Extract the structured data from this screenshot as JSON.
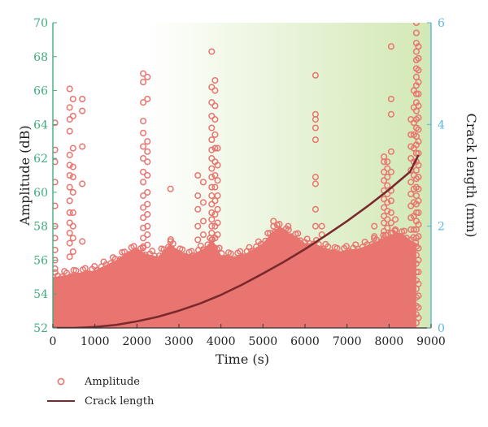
{
  "chart_data": {
    "type": "scatter",
    "xlabel": "Time (s)",
    "ylabel": "Amplitude (dB)",
    "y2label": "Crack length (mm)",
    "xlim": [
      0,
      9000
    ],
    "ylim": [
      52,
      70
    ],
    "y2lim": [
      0,
      6
    ],
    "xticks": [
      0,
      1000,
      2000,
      3000,
      4000,
      5000,
      6000,
      7000,
      8000,
      9000
    ],
    "yticks": [
      52,
      54,
      56,
      58,
      60,
      62,
      64,
      66,
      68,
      70
    ],
    "y2ticks": [
      0,
      2,
      4,
      6
    ],
    "grid": false,
    "legend_position": "bottom-left",
    "background": "gradient white to light green",
    "colors": {
      "amplitude": "#e8756f",
      "crack": "#7a2a2e",
      "left_axis": "#3fae7c",
      "right_axis": "#5ab5e0",
      "bg_start": "#ffffff",
      "bg_end": "#d2e8b4"
    },
    "series": [
      {
        "name": "Amplitude",
        "kind": "scatter",
        "axis": "left",
        "band_upper_envelope": {
          "x": [
            0,
            500,
            1000,
            1500,
            1800,
            2000,
            2200,
            2500,
            2800,
            3000,
            3300,
            3600,
            3800,
            4000,
            4300,
            4600,
            5000,
            5200,
            5400,
            5600,
            5800,
            6000,
            6200,
            6500,
            6800,
            7000,
            7300,
            7600,
            7900,
            8100,
            8300,
            8500,
            8650
          ],
          "y": [
            55.0,
            55.2,
            55.4,
            56.0,
            56.5,
            56.7,
            56.4,
            56.2,
            57.0,
            56.5,
            56.3,
            56.7,
            57.2,
            56.3,
            56.2,
            56.4,
            57.0,
            57.6,
            58.0,
            57.6,
            57.4,
            57.0,
            57.0,
            56.7,
            56.5,
            56.6,
            56.7,
            57.0,
            57.3,
            57.5,
            57.6,
            57.2,
            57.0
          ]
        },
        "band_floor": 52.0,
        "burst_columns": [
          {
            "x": 50,
            "y": [
              55.5,
              56,
              56.6,
              57.3,
              58,
              59.2,
              60.6,
              61.8,
              62.5,
              64.1
            ]
          },
          {
            "x": 400,
            "y": [
              56.2,
              57,
              57.6,
              58.2,
              58.8,
              59.5,
              60.3,
              61.0,
              61.6,
              62.2,
              63.6,
              64.3,
              65.0,
              66.1
            ]
          },
          {
            "x": 480,
            "y": [
              56.5,
              57.3,
              58.0,
              58.8,
              60.0,
              60.9,
              61.5,
              62.6,
              64.5,
              65.5
            ]
          },
          {
            "x": 700,
            "y": [
              57.1,
              60.5,
              62.7,
              64.8,
              65.5
            ]
          },
          {
            "x": 2150,
            "y": [
              56.8,
              57.3,
              57.9,
              58.5,
              59.1,
              59.8,
              60.6,
              61.2,
              62.0,
              62.7,
              63.5,
              64.2,
              65.3,
              66.5,
              67.0
            ]
          },
          {
            "x": 2250,
            "y": [
              56.9,
              57.5,
              58.0,
              58.7,
              59.3,
              60.0,
              61.0,
              61.8,
              62.4,
              63.0,
              65.5,
              66.8
            ]
          },
          {
            "x": 2800,
            "y": [
              57.1,
              60.2
            ]
          },
          {
            "x": 3450,
            "y": [
              57.2,
              58.0,
              59.0,
              59.8,
              61.0
            ]
          },
          {
            "x": 3580,
            "y": [
              57.5,
              58.3,
              59.4,
              60.6
            ]
          },
          {
            "x": 3780,
            "y": [
              56.8,
              57.2,
              57.6,
              58.0,
              58.4,
              58.8,
              59.3,
              59.8,
              60.3,
              60.9,
              61.4,
              62.0,
              62.5,
              63.1,
              63.8,
              64.5,
              65.3,
              66.2,
              68.3
            ]
          },
          {
            "x": 3860,
            "y": [
              57.3,
              58.0,
              58.7,
              59.5,
              60.3,
              61.0,
              61.8,
              62.6,
              63.4,
              64.3,
              65.1,
              66.0,
              66.6
            ]
          },
          {
            "x": 3920,
            "y": [
              57.5,
              58.2,
              59.0,
              59.8,
              60.7,
              61.6,
              62.6
            ]
          },
          {
            "x": 5250,
            "y": [
              58.3,
              58.0
            ]
          },
          {
            "x": 5600,
            "y": [
              58.0
            ]
          },
          {
            "x": 6250,
            "y": [
              58.0,
              59.0,
              60.5,
              60.9,
              63.1,
              63.8,
              64.3,
              64.6,
              66.9
            ]
          },
          {
            "x": 6400,
            "y": [
              58.0,
              57.5
            ]
          },
          {
            "x": 7650,
            "y": [
              58.0,
              57.4
            ]
          },
          {
            "x": 7880,
            "y": [
              57.3,
              57.7,
              58.2,
              58.6,
              59.1,
              59.6,
              60.1,
              60.7,
              61.2,
              61.8,
              62.1
            ]
          },
          {
            "x": 7960,
            "y": [
              57.9,
              58.4,
              58.9,
              59.4,
              59.9,
              60.4,
              60.9,
              61.4,
              61.8
            ]
          },
          {
            "x": 8050,
            "y": [
              57.6,
              58.2,
              58.8,
              59.5,
              60.1,
              61.2,
              62.4,
              64.6,
              65.5,
              68.6
            ]
          },
          {
            "x": 8150,
            "y": [
              57.8,
              58.4
            ]
          },
          {
            "x": 8520,
            "y": [
              57.8,
              58.5,
              59.2,
              59.9,
              60.6,
              61.3,
              62.0,
              62.7,
              63.4,
              64.3
            ]
          },
          {
            "x": 8590,
            "y": [
              57.8,
              58.6,
              59.4,
              60.2,
              61.0,
              61.8,
              62.6,
              63.4,
              64.1,
              65.0,
              66.0
            ]
          },
          {
            "x": 8650,
            "y": [
              52.3,
              52.8,
              53.3,
              53.8,
              54.3,
              54.8,
              55.3,
              55.8,
              56.3,
              56.8,
              57.3,
              57.8,
              58.3,
              58.8,
              59.3,
              59.8,
              60.3,
              60.8,
              61.3,
              61.8,
              62.3,
              62.8,
              63.3,
              63.8,
              64.3,
              64.8,
              65.3,
              65.8,
              66.3,
              66.8,
              67.3,
              67.8,
              68.3,
              68.8,
              69.4,
              70.0
            ]
          },
          {
            "x": 8700,
            "y": [
              52.6,
              53.2,
              53.9,
              54.6,
              55.3,
              56.0,
              56.7,
              57.4,
              58.1,
              58.8,
              59.5,
              60.2,
              60.9,
              61.6,
              62.3,
              63.0,
              63.7,
              64.4,
              65.1,
              65.8,
              66.5,
              67.2,
              67.9,
              68.6
            ]
          }
        ]
      },
      {
        "name": "Crack length",
        "kind": "line",
        "axis": "right",
        "x": [
          0,
          500,
          1000,
          1500,
          2000,
          2500,
          3000,
          3500,
          4000,
          4500,
          5000,
          5500,
          6000,
          6500,
          7000,
          7500,
          8000,
          8500,
          8700
        ],
        "y": [
          0.0,
          0.0,
          0.02,
          0.06,
          0.13,
          0.22,
          0.34,
          0.48,
          0.65,
          0.85,
          1.07,
          1.3,
          1.55,
          1.82,
          2.1,
          2.4,
          2.72,
          3.07,
          3.4
        ]
      }
    ]
  }
}
